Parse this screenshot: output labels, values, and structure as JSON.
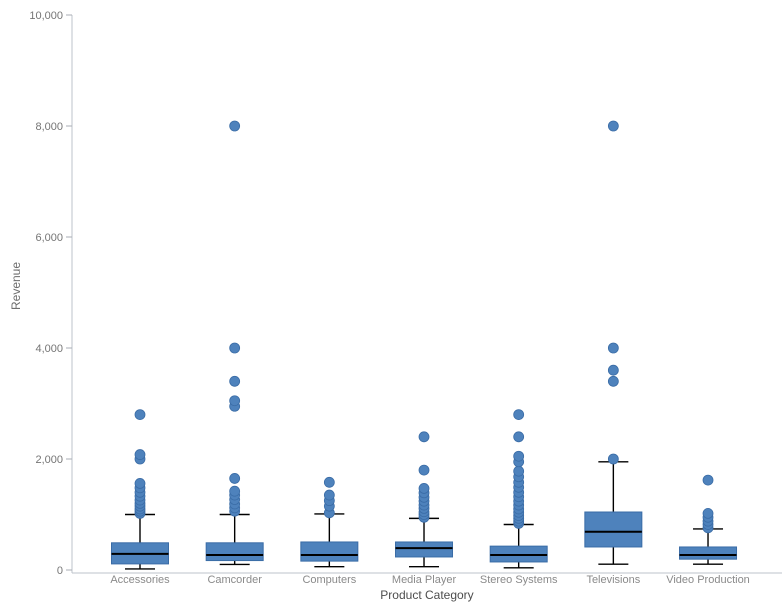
{
  "chart_data": {
    "type": "boxplot",
    "title": "",
    "xlabel": "Product Category",
    "ylabel": "Revenue",
    "ylim": [
      0,
      10000
    ],
    "yticks": [
      0,
      2000,
      4000,
      6000,
      8000,
      10000
    ],
    "ytick_labels": [
      "0",
      "2,000",
      "4,000",
      "6,000",
      "8,000",
      "10,000"
    ],
    "grid": false,
    "legend": "none",
    "categories": [
      "Accessories",
      "Camcorder",
      "Computers",
      "Media Player",
      "Stereo Systems",
      "Televisions",
      "Video Production"
    ],
    "series": [
      {
        "label": "Accessories",
        "whisker_low": 20,
        "q1": 110,
        "median": 290,
        "q3": 490,
        "whisker_high": 1000,
        "outliers": [
          1020,
          1060,
          1100,
          1150,
          1200,
          1260,
          1330,
          1400,
          1480,
          1560,
          2000,
          2080,
          2800
        ]
      },
      {
        "label": "Camcorder",
        "whisker_low": 100,
        "q1": 170,
        "median": 270,
        "q3": 490,
        "whisker_high": 1000,
        "outliers": [
          1060,
          1120,
          1190,
          1270,
          1350,
          1420,
          1650,
          2950,
          3050,
          3400,
          4000,
          8000
        ]
      },
      {
        "label": "Computers",
        "whisker_low": 60,
        "q1": 160,
        "median": 270,
        "q3": 505,
        "whisker_high": 1010,
        "outliers": [
          1030,
          1150,
          1250,
          1350,
          1580
        ]
      },
      {
        "label": "Media Player",
        "whisker_low": 60,
        "q1": 235,
        "median": 395,
        "q3": 505,
        "whisker_high": 930,
        "outliers": [
          950,
          1000,
          1050,
          1110,
          1170,
          1240,
          1310,
          1390,
          1470,
          1800,
          2400
        ]
      },
      {
        "label": "Stereo Systems",
        "whisker_low": 40,
        "q1": 145,
        "median": 270,
        "q3": 430,
        "whisker_high": 820,
        "outliers": [
          840,
          880,
          930,
          980,
          1040,
          1100,
          1170,
          1240,
          1320,
          1400,
          1490,
          1580,
          1680,
          1780,
          1950,
          2050,
          2400,
          2800
        ]
      },
      {
        "label": "Televisions",
        "whisker_low": 105,
        "q1": 415,
        "median": 690,
        "q3": 1045,
        "whisker_high": 1950,
        "outliers": [
          2000,
          3400,
          3600,
          4000,
          8000
        ]
      },
      {
        "label": "Video Production",
        "whisker_low": 105,
        "q1": 195,
        "median": 270,
        "q3": 415,
        "whisker_high": 740,
        "outliers": [
          760,
          820,
          880,
          950,
          1020,
          1620
        ]
      }
    ]
  },
  "colors": {
    "box_fill": "#4e82bc",
    "box_stroke": "#3a6ca6",
    "median_line": "#000000",
    "whisker_line": "#000000",
    "axis_line": "#bdc3cb",
    "tick_mark": "#a9aeb5",
    "ytick_label": "#757575",
    "category_label": "#8a8a8a",
    "x_title": "#4d4d4d",
    "y_title": "#6e6e6e",
    "background": "#ffffff"
  }
}
